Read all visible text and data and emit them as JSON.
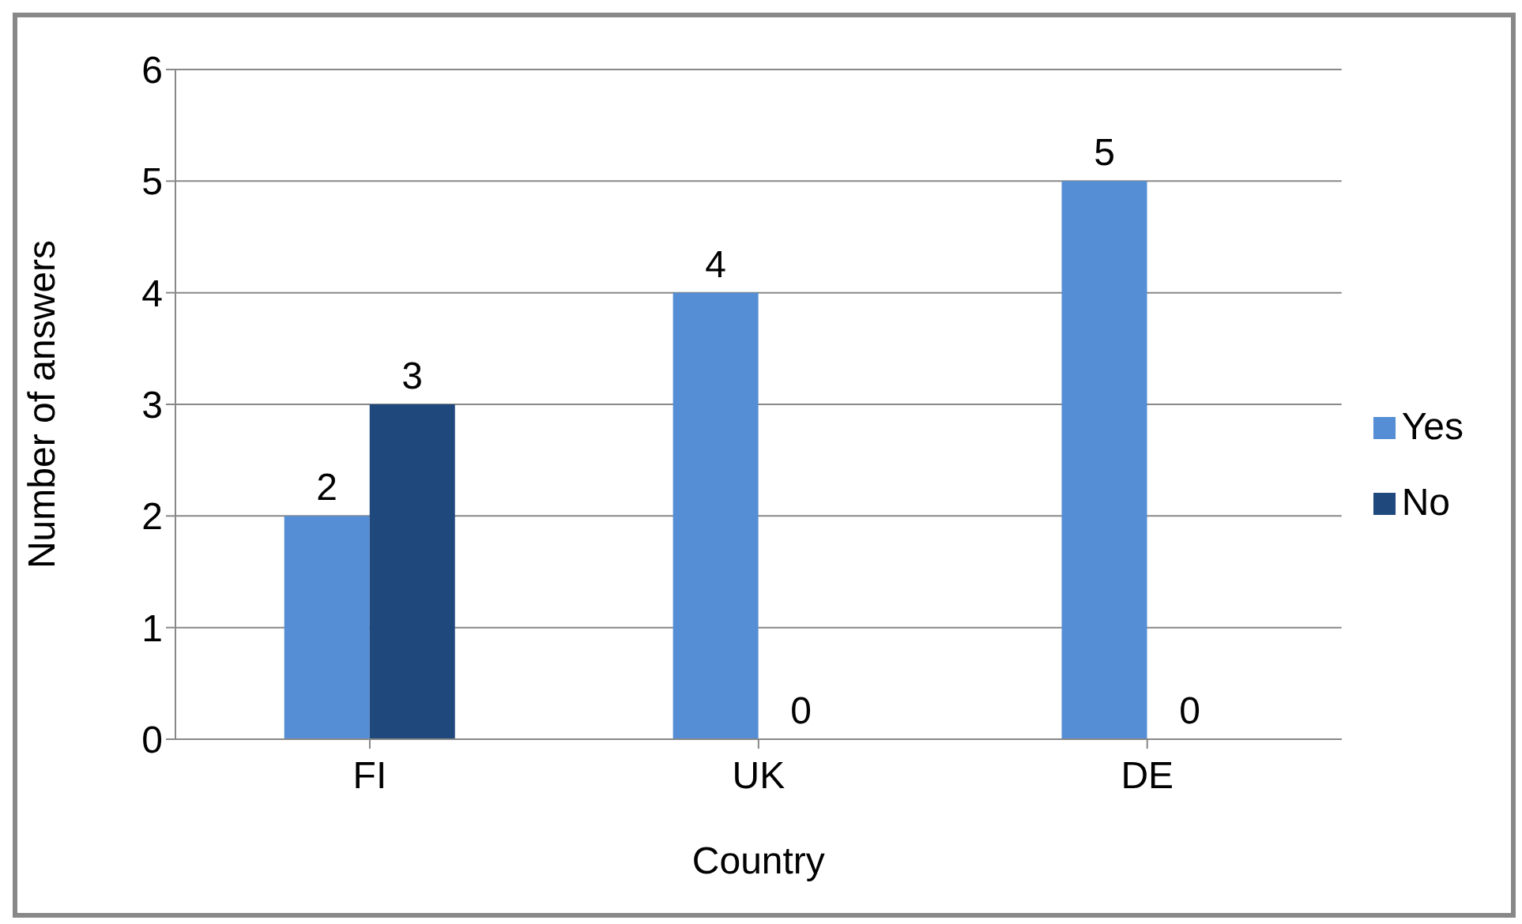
{
  "chart_data": {
    "type": "bar",
    "xlabel": "Country",
    "ylabel": "Number of answers",
    "categories": [
      "FI",
      "UK",
      "DE"
    ],
    "series": [
      {
        "name": "Yes",
        "color": "#558ed5",
        "values": [
          2,
          4,
          5
        ]
      },
      {
        "name": "No",
        "color": "#1f497d",
        "values": [
          3,
          0,
          0
        ]
      }
    ],
    "ylim": [
      0,
      6
    ],
    "yticks": [
      0,
      1,
      2,
      3,
      4,
      5,
      6
    ],
    "grid": "y",
    "legend": "right",
    "data_labels": true
  }
}
